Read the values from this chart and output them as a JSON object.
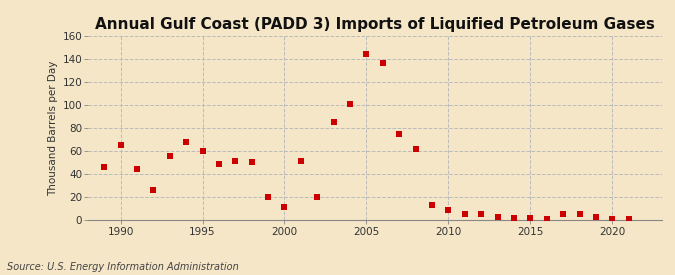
{
  "title": "Annual Gulf Coast (PADD 3) Imports of Liquified Petroleum Gases",
  "ylabel": "Thousand Barrels per Day",
  "source": "Source: U.S. Energy Information Administration",
  "background_color": "#f5e6c8",
  "plot_background_color": "#f5e6c8",
  "marker_color": "#cc0000",
  "grid_color": "#bbbbbb",
  "years": [
    1989,
    1990,
    1991,
    1992,
    1993,
    1994,
    1995,
    1996,
    1997,
    1998,
    1999,
    2000,
    2001,
    2002,
    2003,
    2004,
    2005,
    2006,
    2007,
    2008,
    2009,
    2010,
    2011,
    2012,
    2013,
    2014,
    2015,
    2016,
    2017,
    2018,
    2019,
    2020,
    2021
  ],
  "values": [
    46,
    65,
    44,
    26,
    56,
    68,
    60,
    49,
    51,
    50,
    20,
    11,
    51,
    20,
    85,
    101,
    144,
    136,
    75,
    62,
    13,
    9,
    5,
    5,
    3,
    2,
    2,
    1,
    5,
    5,
    3,
    1,
    1
  ],
  "ylim": [
    0,
    160
  ],
  "yticks": [
    0,
    20,
    40,
    60,
    80,
    100,
    120,
    140,
    160
  ],
  "xlim": [
    1988.0,
    2023.0
  ],
  "xticks": [
    1990,
    1995,
    2000,
    2005,
    2010,
    2015,
    2020
  ],
  "title_fontsize": 11,
  "label_fontsize": 7.5,
  "tick_fontsize": 7.5,
  "source_fontsize": 7,
  "marker_size": 16
}
